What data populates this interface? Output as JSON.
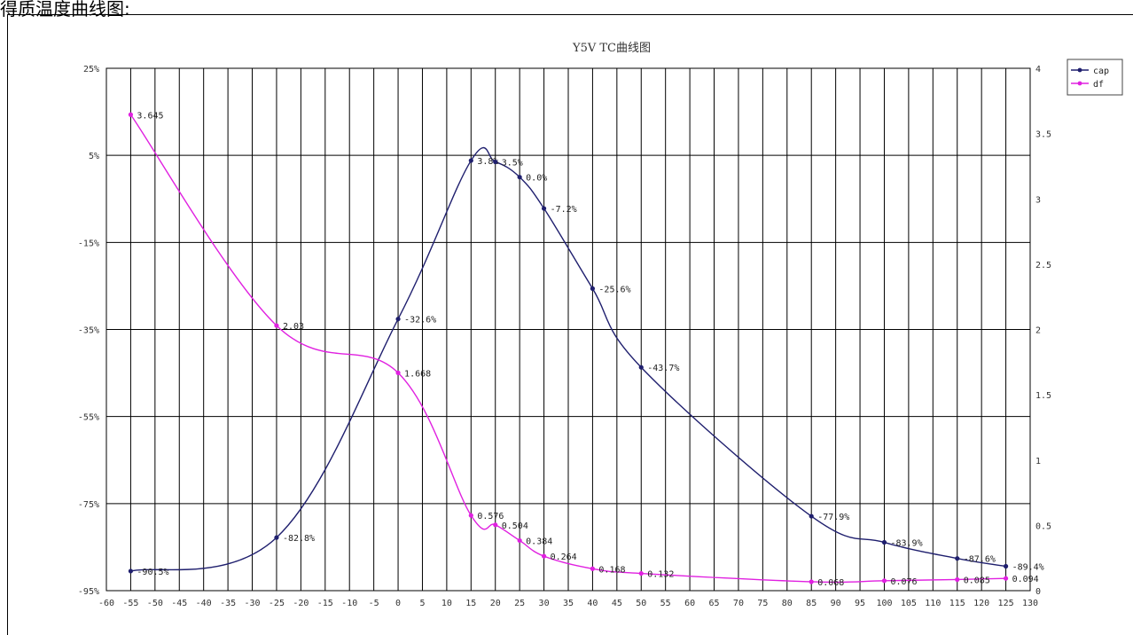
{
  "caption": "得质温度曲线图:",
  "chart_data": {
    "type": "line",
    "title": "Y5V  TC曲线图",
    "xlabel": "",
    "ylabel": "",
    "x_ticks": [
      -60,
      -55,
      -50,
      -45,
      -40,
      -35,
      -30,
      -25,
      -20,
      -15,
      -10,
      -5,
      0,
      5,
      10,
      15,
      20,
      25,
      30,
      35,
      40,
      45,
      50,
      55,
      60,
      65,
      70,
      75,
      80,
      85,
      90,
      95,
      100,
      105,
      110,
      115,
      120,
      125,
      130
    ],
    "xlim": [
      -60,
      130
    ],
    "y_left": {
      "ylim": [
        -95,
        25
      ],
      "ticks": [
        25,
        5,
        -15,
        -35,
        -55,
        -75,
        -95
      ],
      "tick_labels": [
        "25%",
        "5%",
        "-15%",
        "-35%",
        "-55%",
        "-75%",
        "-95%"
      ]
    },
    "y_right": {
      "ylim": [
        0,
        4
      ],
      "ticks": [
        4,
        3.5,
        3,
        2.5,
        2,
        1.5,
        1,
        0.5,
        0
      ],
      "tick_labels": [
        "4",
        "3.5",
        "3",
        "2.5",
        "2",
        "1.5",
        "1",
        "0.5",
        "0"
      ]
    },
    "grid": true,
    "legend_position": "top-right",
    "series": [
      {
        "name": "cap",
        "axis": "left",
        "color": "#1f1f6e",
        "x": [
          -55,
          -25,
          0,
          15,
          20,
          25,
          30,
          40,
          50,
          85,
          100,
          115,
          125
        ],
        "values": [
          -90.5,
          -82.8,
          -32.6,
          3.8,
          3.5,
          0.0,
          -7.2,
          -25.6,
          -43.7,
          -77.9,
          -83.9,
          -87.6,
          -89.4
        ],
        "labels": [
          "-90.5%",
          "-82.8%",
          "-32.6%",
          "3.8%",
          "3.5%",
          "0.0%",
          "-7.2%",
          "-25.6%",
          "-43.7%",
          "-77.9%",
          "-83.9%",
          "-87.6%",
          "-89.4%"
        ]
      },
      {
        "name": "df",
        "axis": "right",
        "color": "#e020e0",
        "x": [
          -55,
          -25,
          0,
          15,
          20,
          25,
          30,
          40,
          50,
          85,
          100,
          115,
          125
        ],
        "values": [
          3.645,
          2.03,
          1.668,
          0.576,
          0.504,
          0.384,
          0.264,
          0.168,
          0.132,
          0.068,
          0.076,
          0.085,
          0.094
        ],
        "labels": [
          "3.645",
          "2.03",
          "1.668",
          "0.576",
          "0.504",
          "0.384",
          "0.264",
          "0.168",
          "0.132",
          "0.068",
          "0.076",
          "0.085",
          "0.094"
        ]
      }
    ]
  }
}
